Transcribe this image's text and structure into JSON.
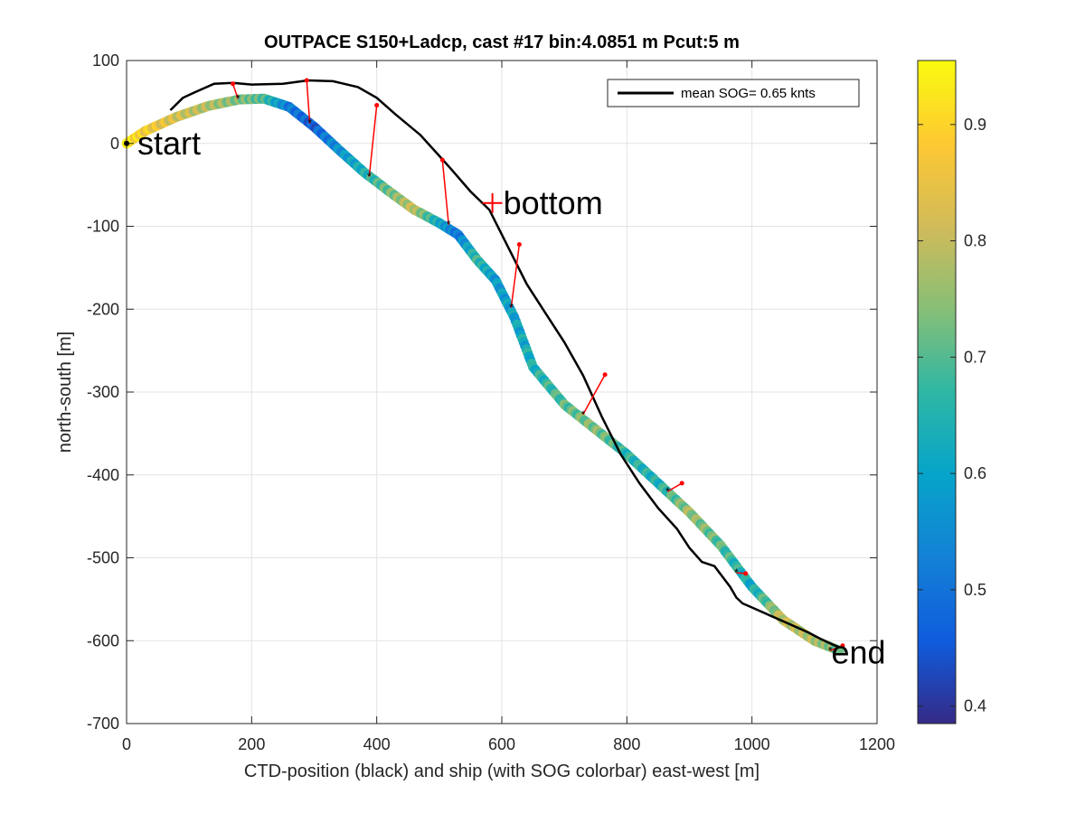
{
  "chart_data": {
    "type": "scatter",
    "title": "OUTPACE S150+Ladcp, cast #17 bin:4.0851 m  Pcut:5 m",
    "xlabel": "CTD-position (black) and ship (with SOG colorbar) east-west [m]",
    "ylabel": "north-south [m]",
    "xlim": [
      0,
      1200
    ],
    "ylim": [
      -700,
      100
    ],
    "xticks": [
      "0",
      "200",
      "400",
      "600",
      "800",
      "1000",
      "1200"
    ],
    "yticks": [
      "100",
      "0",
      "-100",
      "-200",
      "-300",
      "-400",
      "-500",
      "-600",
      "-700"
    ],
    "grid": true,
    "legend": {
      "entry": "mean SOG=  0.65 knts",
      "placement": "top-right"
    },
    "colorbar": {
      "ticks": [
        "0.9",
        "0.8",
        "0.7",
        "0.6",
        "0.5",
        "0.4"
      ],
      "tick_values": [
        0.9,
        0.8,
        0.7,
        0.6,
        0.5,
        0.4
      ],
      "range": [
        0.385,
        0.955
      ],
      "colormap": "parula"
    },
    "annotations": [
      {
        "text": "start",
        "x": 0,
        "y": 0
      },
      {
        "text": "bottom",
        "x": 585,
        "y": -72
      },
      {
        "text": "end",
        "x": 1140,
        "y": -612
      }
    ],
    "ship_track": {
      "x": [
        0,
        30,
        80,
        130,
        180,
        220,
        260,
        300,
        340,
        380,
        420,
        460,
        500,
        530,
        560,
        590,
        620,
        650,
        700,
        750,
        800,
        850,
        900,
        950,
        1000,
        1050,
        1100,
        1140
      ],
      "y": [
        0,
        15,
        32,
        45,
        53,
        54,
        44,
        20,
        -8,
        -35,
        -58,
        -80,
        -96,
        -110,
        -140,
        -165,
        -210,
        -270,
        -315,
        -345,
        -375,
        -410,
        -445,
        -485,
        -535,
        -575,
        -600,
        -612
      ],
      "sog": [
        0.93,
        0.88,
        0.82,
        0.78,
        0.74,
        0.7,
        0.52,
        0.46,
        0.56,
        0.64,
        0.72,
        0.8,
        0.62,
        0.5,
        0.68,
        0.58,
        0.6,
        0.64,
        0.7,
        0.74,
        0.66,
        0.64,
        0.76,
        0.7,
        0.62,
        0.8,
        0.78,
        0.72
      ]
    },
    "ctd_track": {
      "x": [
        70,
        90,
        110,
        140,
        170,
        200,
        250,
        290,
        330,
        370,
        400,
        430,
        470,
        500,
        520,
        550,
        580,
        610,
        640,
        670,
        700,
        730,
        760,
        790,
        820,
        850,
        880,
        900,
        920,
        940,
        950,
        965,
        975,
        985,
        1000,
        1030,
        1060,
        1090,
        1110,
        1130,
        1140
      ],
      "y": [
        40,
        55,
        62,
        72,
        73,
        71,
        72,
        76,
        75,
        68,
        55,
        35,
        10,
        -15,
        -32,
        -58,
        -80,
        -125,
        -170,
        -205,
        -240,
        -280,
        -330,
        -375,
        -410,
        -440,
        -465,
        -488,
        -505,
        -510,
        -520,
        -535,
        -548,
        -555,
        -560,
        -570,
        -580,
        -590,
        -598,
        -605,
        -608
      ]
    },
    "connector_pairs": [
      {
        "ctd": [
          170,
          72
        ],
        "ship": [
          178,
          54
        ]
      },
      {
        "ctd": [
          288,
          76
        ],
        "ship": [
          293,
          24
        ]
      },
      {
        "ctd": [
          400,
          46
        ],
        "ship": [
          388,
          -40
        ]
      },
      {
        "ctd": [
          505,
          -20
        ],
        "ship": [
          515,
          -98
        ]
      },
      {
        "ctd": [
          628,
          -122
        ],
        "ship": [
          615,
          -198
        ]
      },
      {
        "ctd": [
          765,
          -279
        ],
        "ship": [
          730,
          -327
        ]
      },
      {
        "ctd": [
          888,
          -410
        ],
        "ship": [
          865,
          -420
        ]
      },
      {
        "ctd": [
          990,
          -519
        ],
        "ship": [
          975,
          -518
        ]
      },
      {
        "ctd": [
          1145,
          -606
        ],
        "ship": [
          1125,
          -612
        ]
      }
    ]
  }
}
